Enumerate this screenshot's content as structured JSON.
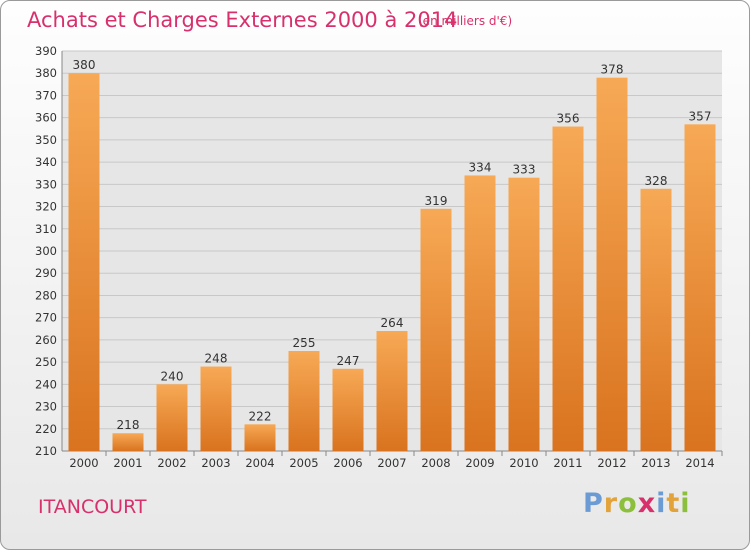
{
  "title": "Achats et Charges Externes 2000 à 2014",
  "title_unit": "(en milliers d'€)",
  "place_name": "ITANCOURT",
  "logo": {
    "letters": [
      "P",
      "r",
      "o",
      "x",
      "i",
      "t",
      "i"
    ],
    "colors": [
      "#6a9bd4",
      "#e2a33a",
      "#8bbf3c",
      "#d8306c",
      "#6a9bd4",
      "#e2a33a",
      "#8bbf3c"
    ]
  },
  "colors": {
    "title": "#d8306c",
    "bar_light": "#f7a955",
    "bar_dark": "#d9731f",
    "grid": "#c8c8c8",
    "plot_background": "#e6e6e6"
  },
  "chart_data": {
    "type": "bar",
    "title": "Achats et Charges Externes 2000 à 2014",
    "subtitle": "(en milliers d'€)",
    "xlabel": "",
    "ylabel": "",
    "categories": [
      "2000",
      "2001",
      "2002",
      "2003",
      "2004",
      "2005",
      "2006",
      "2007",
      "2008",
      "2009",
      "2010",
      "2011",
      "2012",
      "2013",
      "2014"
    ],
    "values": [
      380,
      218,
      240,
      248,
      222,
      255,
      247,
      264,
      319,
      334,
      333,
      356,
      378,
      328,
      357
    ],
    "ylim": [
      210,
      390
    ],
    "y_ticks": [
      210,
      220,
      230,
      240,
      250,
      260,
      270,
      280,
      290,
      300,
      310,
      320,
      330,
      340,
      350,
      360,
      370,
      380,
      390
    ],
    "grid": true,
    "data_labels": true
  }
}
